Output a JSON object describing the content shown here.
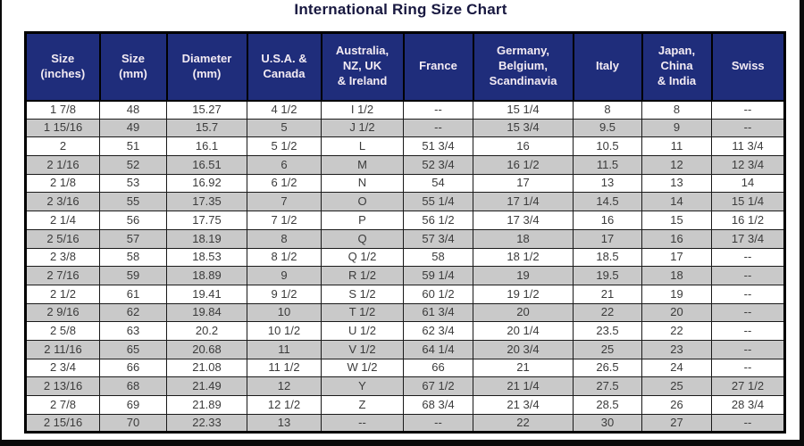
{
  "colors": {
    "header_bg": "#1f2d7b",
    "header_text": "#f3ebf3",
    "row_alt": "#c9c9c9",
    "row_main": "#ffffff",
    "grid": "#1a1a1a",
    "cell_text": "#3b3b3b",
    "title_color": "#181840",
    "frame": "#0a0a0a"
  },
  "chart_data": {
    "type": "table",
    "title": "International Ring Size Chart",
    "columns": [
      {
        "id": "size-inches",
        "label": "Size\n(inches)"
      },
      {
        "id": "size-mm",
        "label": "Size\n(mm)"
      },
      {
        "id": "diameter-mm",
        "label": "Diameter\n(mm)"
      },
      {
        "id": "usa-canada",
        "label": "U.S.A. &\nCanada"
      },
      {
        "id": "australia-nz-uk-ireland",
        "label": "Australia,\nNZ, UK\n& Ireland"
      },
      {
        "id": "france",
        "label": "France"
      },
      {
        "id": "germany-belgium-scandinavia",
        "label": "Germany,\nBelgium,\nScandinavia"
      },
      {
        "id": "italy",
        "label": "Italy"
      },
      {
        "id": "japan-china-india",
        "label": "Japan,\nChina\n& India"
      },
      {
        "id": "swiss",
        "label": "Swiss"
      }
    ],
    "rows": [
      [
        "1 7/8",
        "48",
        "15.27",
        "4 1/2",
        "I 1/2",
        "--",
        "15 1/4",
        "8",
        "8",
        "--"
      ],
      [
        "1 15/16",
        "49",
        "15.7",
        "5",
        "J 1/2",
        "--",
        "15 3/4",
        "9.5",
        "9",
        "--"
      ],
      [
        "2",
        "51",
        "16.1",
        "5 1/2",
        "L",
        "51 3/4",
        "16",
        "10.5",
        "11",
        "11 3/4"
      ],
      [
        "2 1/16",
        "52",
        "16.51",
        "6",
        "M",
        "52 3/4",
        "16 1/2",
        "11.5",
        "12",
        "12 3/4"
      ],
      [
        "2 1/8",
        "53",
        "16.92",
        "6 1/2",
        "N",
        "54",
        "17",
        "13",
        "13",
        "14"
      ],
      [
        "2 3/16",
        "55",
        "17.35",
        "7",
        "O",
        "55 1/4",
        "17 1/4",
        "14.5",
        "14",
        "15 1/4"
      ],
      [
        "2 1/4",
        "56",
        "17.75",
        "7 1/2",
        "P",
        "56 1/2",
        "17 3/4",
        "16",
        "15",
        "16 1/2"
      ],
      [
        "2 5/16",
        "57",
        "18.19",
        "8",
        "Q",
        "57 3/4",
        "18",
        "17",
        "16",
        "17 3/4"
      ],
      [
        "2 3/8",
        "58",
        "18.53",
        "8 1/2",
        "Q 1/2",
        "58",
        "18 1/2",
        "18.5",
        "17",
        "--"
      ],
      [
        "2 7/16",
        "59",
        "18.89",
        "9",
        "R 1/2",
        "59 1/4",
        "19",
        "19.5",
        "18",
        "--"
      ],
      [
        "2 1/2",
        "61",
        "19.41",
        "9 1/2",
        "S 1/2",
        "60 1/2",
        "19 1/2",
        "21",
        "19",
        "--"
      ],
      [
        "2 9/16",
        "62",
        "19.84",
        "10",
        "T 1/2",
        "61 3/4",
        "20",
        "22",
        "20",
        "--"
      ],
      [
        "2 5/8",
        "63",
        "20.2",
        "10 1/2",
        "U 1/2",
        "62 3/4",
        "20 1/4",
        "23.5",
        "22",
        "--"
      ],
      [
        "2 11/16",
        "65",
        "20.68",
        "11",
        "V 1/2",
        "64 1/4",
        "20 3/4",
        "25",
        "23",
        "--"
      ],
      [
        "2 3/4",
        "66",
        "21.08",
        "11 1/2",
        "W 1/2",
        "66",
        "21",
        "26.5",
        "24",
        "--"
      ],
      [
        "2 13/16",
        "68",
        "21.49",
        "12",
        "Y",
        "67 1/2",
        "21 1/4",
        "27.5",
        "25",
        "27 1/2"
      ],
      [
        "2 7/8",
        "69",
        "21.89",
        "12 1/2",
        "Z",
        "68 3/4",
        "21 3/4",
        "28.5",
        "26",
        "28 3/4"
      ],
      [
        "2 15/16",
        "70",
        "22.33",
        "13",
        "--",
        "--",
        "22",
        "30",
        "27",
        "--"
      ]
    ]
  }
}
